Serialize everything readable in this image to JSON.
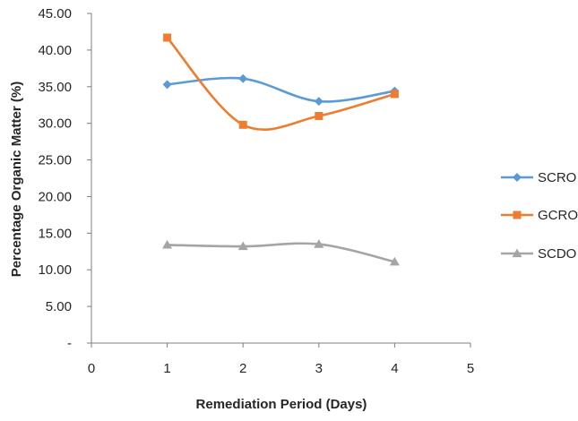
{
  "chart_data": {
    "type": "scatter",
    "title": "",
    "xlabel": "Remediation Period (Days)",
    "ylabel": "Percentage Organic Matter (%)",
    "xlim": [
      0,
      5
    ],
    "ylim": [
      0,
      45
    ],
    "x_ticks": [
      "0",
      "1",
      "2",
      "3",
      "4",
      "5"
    ],
    "y_ticks": [
      "-",
      "5.00",
      "10.00",
      "15.00",
      "20.00",
      "25.00",
      "30.00",
      "35.00",
      "40.00",
      "45.00"
    ],
    "grid": false,
    "legend_position": "right",
    "smoothed_lines": true,
    "series": [
      {
        "name": "SCRO",
        "color": "#5B9BD5",
        "marker": "diamond",
        "x": [
          1,
          2,
          3,
          4
        ],
        "y": [
          35.3,
          36.1,
          33.0,
          34.4
        ]
      },
      {
        "name": "GCRO",
        "color": "#ED7D31",
        "marker": "square",
        "x": [
          1,
          2,
          3,
          4
        ],
        "y": [
          41.7,
          29.8,
          31.0,
          34.0
        ]
      },
      {
        "name": "SCDO",
        "color": "#A5A5A5",
        "marker": "triangle",
        "x": [
          1,
          2,
          3,
          4
        ],
        "y": [
          13.4,
          13.2,
          13.5,
          11.1
        ]
      }
    ]
  }
}
